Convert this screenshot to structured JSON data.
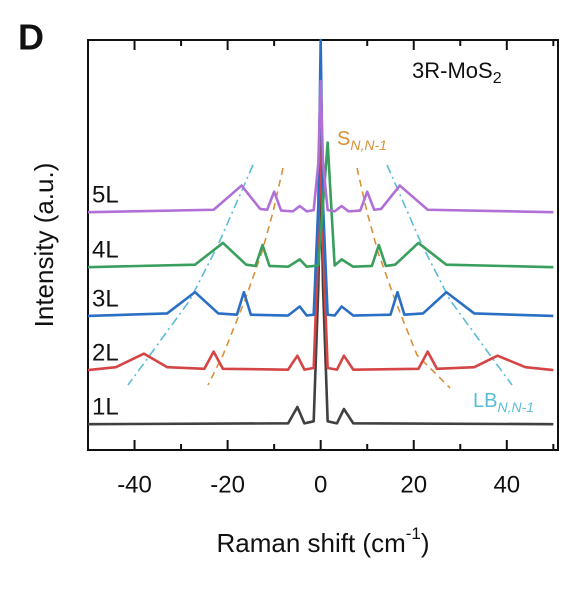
{
  "panel_label": "D",
  "chart_data": {
    "type": "line",
    "title": "3R-MoS",
    "title_subscript": "2",
    "y_label": "Intensity (a.u.)",
    "x_label": "Raman shift (cm",
    "x_label_superscript": "-1",
    "x_label_end": ")",
    "annotations": [
      {
        "text": "S",
        "subscript": "N,N-1"
      },
      {
        "text": "LB",
        "subscript": "N,N-1"
      }
    ],
    "xlim": [
      -50,
      51
    ],
    "ylim": [
      0,
      100
    ],
    "xticks": [
      -40,
      -20,
      0,
      20,
      40
    ],
    "xminorticks": [
      -50,
      -30,
      -10,
      10,
      30,
      50
    ],
    "series": [
      {
        "name": "1L",
        "color": "#404040",
        "x": [
          -50,
          -7,
          -5,
          -3.5,
          -1.5,
          -0.5,
          0,
          0.5,
          1.5,
          3.5,
          5,
          7,
          50
        ],
        "values": [
          6.3,
          6.5,
          10.5,
          6.5,
          7,
          40,
          70,
          40,
          7,
          6.5,
          10,
          6.5,
          6.3
        ]
      },
      {
        "name": "2L",
        "color": "#d64545",
        "x": [
          -50,
          -44,
          -38,
          -33,
          -25,
          -23,
          -21,
          -7,
          -5,
          -3.5,
          -1.5,
          -0.5,
          0,
          0.5,
          1.5,
          3.5,
          5,
          7,
          21,
          23,
          25,
          33,
          38,
          44,
          50
        ],
        "values": [
          19.5,
          20.2,
          23.5,
          20.2,
          19.8,
          24,
          19.8,
          19.6,
          23,
          19.6,
          20,
          50,
          80,
          50,
          20,
          19.6,
          23,
          19.6,
          19.8,
          24,
          19.8,
          20.2,
          23,
          20.2,
          19.5
        ]
      },
      {
        "name": "3L",
        "color": "#2a6fc4",
        "x": [
          -50,
          -33,
          -27,
          -22,
          -18,
          -16.5,
          -15,
          -7,
          -4.5,
          -3,
          -1.5,
          -0.5,
          0,
          0.5,
          1.5,
          3,
          4.5,
          7,
          15,
          16.5,
          18,
          22,
          27,
          33,
          50
        ],
        "values": [
          32.7,
          33.3,
          38.5,
          33.3,
          33,
          38.5,
          33,
          32.8,
          35,
          32.8,
          33,
          60,
          100,
          60,
          33,
          32.8,
          35,
          32.8,
          33,
          38.5,
          33,
          33.3,
          38.5,
          33.3,
          32.7
        ]
      },
      {
        "name": "4L",
        "color": "#3a9e5e",
        "x": [
          -50,
          -27,
          -21,
          -16,
          -14,
          -12.5,
          -11,
          -7,
          -4.5,
          -3,
          -0.5,
          1.5,
          3,
          4.5,
          7,
          11,
          12.5,
          14,
          16,
          21,
          27,
          50
        ],
        "values": [
          44.6,
          45.2,
          50.5,
          45.2,
          44.9,
          50,
          44.9,
          44.7,
          46.5,
          44.7,
          45,
          75,
          45,
          46.5,
          44.7,
          44.9,
          50,
          44.9,
          45.2,
          50.5,
          45.2,
          44.6
        ]
      },
      {
        "name": "5L",
        "color": "#b070d6",
        "x": [
          -50,
          -23,
          -17,
          -13,
          -11.5,
          -10,
          -8.5,
          -6,
          -4.5,
          -3,
          -1.5,
          -0.5,
          0,
          0.5,
          1.5,
          3,
          4.5,
          6,
          8.5,
          10,
          11.5,
          13,
          17,
          23,
          50
        ],
        "values": [
          58,
          58.6,
          64.5,
          58.8,
          58.6,
          63,
          58.4,
          58.2,
          59.5,
          58.2,
          58.5,
          70,
          90,
          70,
          58.5,
          58.2,
          59.5,
          58.2,
          58.4,
          63,
          58.6,
          58.8,
          64.5,
          58.6,
          58
        ]
      }
    ]
  }
}
